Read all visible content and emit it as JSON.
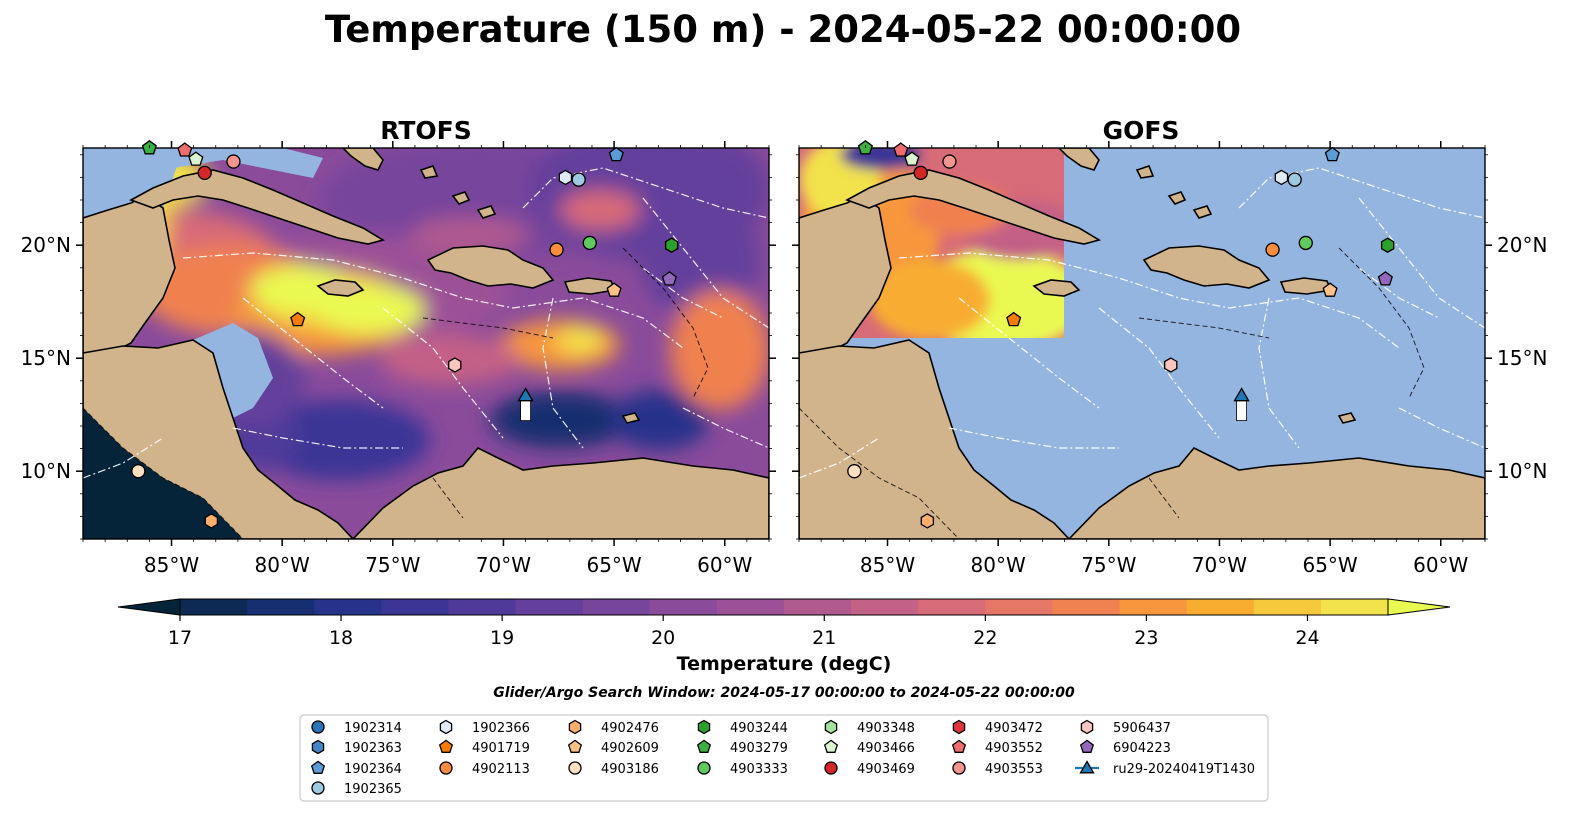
{
  "figure": {
    "title": "Temperature (150 m) - 2024-05-22 00:00:00",
    "panels": [
      {
        "name": "RTOFS"
      },
      {
        "name": "GOFS"
      }
    ],
    "lon_ticks": [
      "85°W",
      "80°W",
      "75°W",
      "70°W",
      "65°W",
      "60°W"
    ],
    "lat_ticks": [
      "20°N",
      "15°N",
      "10°N"
    ],
    "extent": {
      "lon": [
        -89,
        -58
      ],
      "lat": [
        7,
        24.3
      ]
    }
  },
  "colorbar": {
    "label": "Temperature (degC)",
    "ticks": [
      "17",
      "18",
      "19",
      "20",
      "21",
      "22",
      "23",
      "24"
    ],
    "range": [
      17,
      24.5
    ],
    "colors": [
      "#05243a",
      "#0d2a55",
      "#152f70",
      "#25338a",
      "#3b3596",
      "#4f3a9a",
      "#643f9c",
      "#77459c",
      "#8a4b9b",
      "#9c5197",
      "#b05a8f",
      "#c46186",
      "#d86b78",
      "#e67666",
      "#f08150",
      "#f7963c",
      "#f8ad31",
      "#f6c93c",
      "#f2e24c",
      "#eaf951"
    ]
  },
  "search_window": "Glider/Argo Search Window: 2024-05-17 00:00:00 to 2024-05-22 00:00:00",
  "legend": [
    {
      "label": "1902314",
      "shape": "circle",
      "color": "#2a73b8"
    },
    {
      "label": "1902363",
      "shape": "hexagon",
      "color": "#3f85c4"
    },
    {
      "label": "1902364",
      "shape": "pentagon",
      "color": "#5b9bd5"
    },
    {
      "label": "1902365",
      "shape": "circle",
      "color": "#9ecae1"
    },
    {
      "label": "1902366",
      "shape": "hexagon",
      "color": "#deebf7"
    },
    {
      "label": "4901719",
      "shape": "pentagon",
      "color": "#f57c00"
    },
    {
      "label": "4902113",
      "shape": "circle",
      "color": "#fd8d3c"
    },
    {
      "label": "4902476",
      "shape": "hexagon",
      "color": "#fdae6b"
    },
    {
      "label": "4902609",
      "shape": "pentagon",
      "color": "#fdc086"
    },
    {
      "label": "4903186",
      "shape": "circle",
      "color": "#fee0c0"
    },
    {
      "label": "4903244",
      "shape": "hexagon",
      "color": "#2ca02c"
    },
    {
      "label": "4903279",
      "shape": "pentagon",
      "color": "#3cb043"
    },
    {
      "label": "4903333",
      "shape": "circle",
      "color": "#5fcb5f"
    },
    {
      "label": "4903348",
      "shape": "hexagon",
      "color": "#a1e3a1"
    },
    {
      "label": "4903466",
      "shape": "pentagon",
      "color": "#d9f5d0"
    },
    {
      "label": "4903469",
      "shape": "circle",
      "color": "#d62728"
    },
    {
      "label": "4903472",
      "shape": "hexagon",
      "color": "#e0353c"
    },
    {
      "label": "4903552",
      "shape": "pentagon",
      "color": "#ee6b6e"
    },
    {
      "label": "4903553",
      "shape": "circle",
      "color": "#f4968f"
    },
    {
      "label": "5906437",
      "shape": "hexagon",
      "color": "#fcc5c0"
    },
    {
      "label": "6904223",
      "shape": "pentagon",
      "color": "#9467bd"
    },
    {
      "label": "ru29-20240419T1430",
      "shape": "triangle-line",
      "color": "#1f77b4"
    }
  ],
  "markers": [
    {
      "id": "4903469",
      "lon": -83.5,
      "lat": 23.2,
      "shape": "circle",
      "color": "#d62728"
    },
    {
      "id": "4903553",
      "lon": -82.2,
      "lat": 23.7,
      "shape": "circle",
      "color": "#f4968f"
    },
    {
      "id": "4903466",
      "lon": -83.9,
      "lat": 23.8,
      "shape": "pentagon",
      "color": "#d9f5d0"
    },
    {
      "id": "4903279",
      "lon": -86.0,
      "lat": 24.3,
      "shape": "pentagon",
      "color": "#3cb043"
    },
    {
      "id": "4903552",
      "lon": -84.4,
      "lat": 24.2,
      "shape": "pentagon",
      "color": "#ee6b6e"
    },
    {
      "id": "1902366",
      "lon": -67.2,
      "lat": 23.0,
      "shape": "hexagon",
      "color": "#deebf7"
    },
    {
      "id": "1902365",
      "lon": -66.6,
      "lat": 22.9,
      "shape": "circle",
      "color": "#9ecae1"
    },
    {
      "id": "1902364",
      "lon": -64.9,
      "lat": 24.0,
      "shape": "pentagon",
      "color": "#5b9bd5"
    },
    {
      "id": "4902113",
      "lon": -67.6,
      "lat": 19.8,
      "shape": "circle",
      "color": "#fd8d3c"
    },
    {
      "id": "4903333",
      "lon": -66.1,
      "lat": 20.1,
      "shape": "circle",
      "color": "#5fcb5f"
    },
    {
      "id": "4903244",
      "lon": -62.4,
      "lat": 20.0,
      "shape": "hexagon",
      "color": "#2ca02c"
    },
    {
      "id": "6904223",
      "lon": -62.5,
      "lat": 18.5,
      "shape": "pentagon",
      "color": "#9467bd"
    },
    {
      "id": "4902609",
      "lon": -65.0,
      "lat": 18.0,
      "shape": "pentagon",
      "color": "#fdc086"
    },
    {
      "id": "4901719",
      "lon": -79.3,
      "lat": 16.7,
      "shape": "pentagon",
      "color": "#f57c00"
    },
    {
      "id": "5906437",
      "lon": -72.2,
      "lat": 14.7,
      "shape": "hexagon",
      "color": "#fcc5c0"
    },
    {
      "id": "4903186",
      "lon": -86.5,
      "lat": 10.0,
      "shape": "circle",
      "color": "#fee0c0"
    },
    {
      "id": "4902476",
      "lon": -83.2,
      "lat": 7.8,
      "shape": "hexagon",
      "color": "#fdae6b"
    },
    {
      "id": "ru29-20240419T1430",
      "lon": -69.0,
      "lat": 13.3,
      "shape": "triangle",
      "color": "#1f77b4"
    }
  ]
}
